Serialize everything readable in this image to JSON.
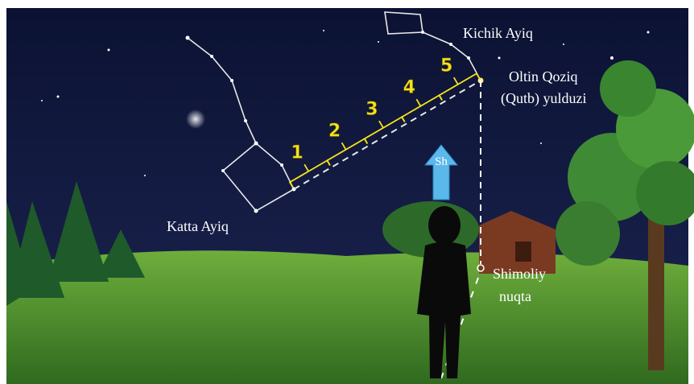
{
  "labels": {
    "little_dipper": "Kichik Ayiq",
    "big_dipper": "Katta Ayiq",
    "pole_star": [
      "Oltin Qoziq",
      "(Qutb) yulduzi"
    ],
    "north_point": [
      "Shimoliy",
      "nuqta"
    ],
    "arrow": "Sh"
  },
  "steps": [
    "1",
    "2",
    "3",
    "4",
    "5"
  ]
}
